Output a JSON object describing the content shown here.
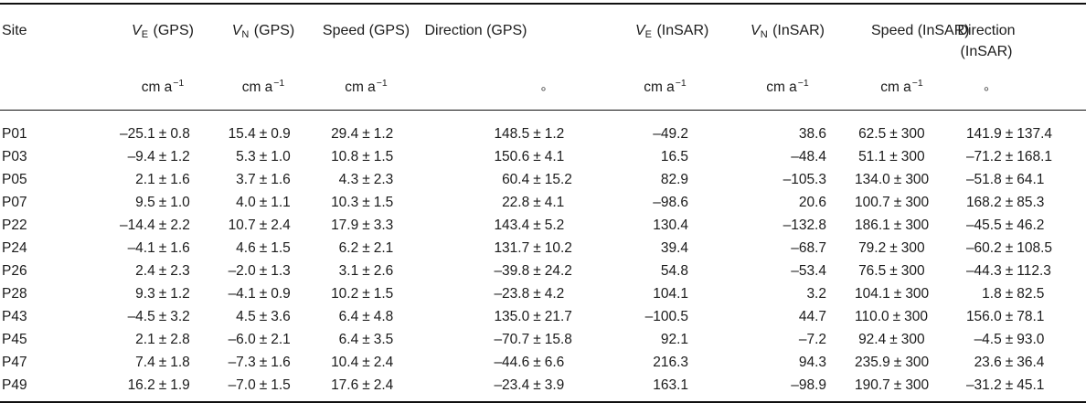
{
  "table": {
    "columns": [
      {
        "key": "site",
        "type": "text",
        "align": "left",
        "title": {
          "text": "Site"
        },
        "unit": null
      },
      {
        "key": "ve_gps",
        "type": "pm",
        "title": {
          "var": "V",
          "sub": "E",
          "rest": "(GPS)"
        },
        "unit": {
          "base": "cm a",
          "sup": "−1"
        }
      },
      {
        "key": "vn_gps",
        "type": "pm",
        "title": {
          "var": "V",
          "sub": "N",
          "rest": "(GPS)"
        },
        "unit": {
          "base": "cm a",
          "sup": "−1"
        }
      },
      {
        "key": "speed_gps",
        "type": "pm",
        "title": {
          "text": "Speed (GPS)"
        },
        "unit": {
          "base": "cm a",
          "sup": "−1"
        }
      },
      {
        "key": "dir_gps",
        "type": "pm",
        "title": {
          "text": "Direction (GPS)"
        },
        "unit": {
          "degree": "°"
        }
      },
      {
        "key": "ve_insar",
        "type": "num",
        "title": {
          "var": "V",
          "sub": "E",
          "rest": "(InSAR)"
        },
        "unit": {
          "base": "cm a",
          "sup": "−1"
        }
      },
      {
        "key": "vn_insar",
        "type": "num",
        "title": {
          "var": "V",
          "sub": "N",
          "rest": "(InSAR)"
        },
        "unit": {
          "base": "cm a",
          "sup": "−1"
        }
      },
      {
        "key": "speed_insar",
        "type": "pm",
        "title": {
          "text": "Speed (InSAR)"
        },
        "unit": {
          "base": "cm a",
          "sup": "−1"
        }
      },
      {
        "key": "dir_insar",
        "type": "pm",
        "title": {
          "text": "Direction",
          "text2": "(InSAR)"
        },
        "unit": {
          "degree": "°"
        }
      }
    ],
    "rows": [
      [
        "P01",
        "–25.1 ± 0.8",
        "15.4 ± 0.9",
        "29.4 ± 1.2",
        "148.5 ± 1.2",
        "–49.2",
        "38.6",
        "62.5 ± 300",
        "141.9 ± 137.4"
      ],
      [
        "P03",
        "–9.4 ± 1.2",
        "5.3 ± 1.0",
        "10.8 ± 1.5",
        "150.6 ± 4.1",
        "16.5",
        "–48.4",
        "51.1 ± 300",
        "–71.2 ± 168.1"
      ],
      [
        "P05",
        "2.1 ± 1.6",
        "3.7 ± 1.6",
        "4.3 ± 2.3",
        "60.4 ± 15.2",
        "82.9",
        "–105.3",
        "134.0 ± 300",
        "–51.8 ± 64.1"
      ],
      [
        "P07",
        "9.5 ± 1.0",
        "4.0 ± 1.1",
        "10.3 ± 1.5",
        "22.8 ± 4.1",
        "–98.6",
        "20.6",
        "100.7 ± 300",
        "168.2 ± 85.3"
      ],
      [
        "P22",
        "–14.4 ± 2.2",
        "10.7 ± 2.4",
        "17.9 ± 3.3",
        "143.4 ± 5.2",
        "130.4",
        "–132.8",
        "186.1 ± 300",
        "–45.5 ± 46.2"
      ],
      [
        "P24",
        "–4.1 ± 1.6",
        "4.6 ± 1.5",
        "6.2 ± 2.1",
        "131.7 ± 10.2",
        "39.4",
        "–68.7",
        "79.2 ± 300",
        "–60.2 ± 108.5"
      ],
      [
        "P26",
        "2.4 ± 2.3",
        "–2.0 ± 1.3",
        "3.1 ± 2.6",
        "–39.8 ± 24.2",
        "54.8",
        "–53.4",
        "76.5 ± 300",
        "–44.3 ± 112.3"
      ],
      [
        "P28",
        "9.3 ± 1.2",
        "–4.1 ± 0.9",
        "10.2 ± 1.5",
        "–23.8 ± 4.2",
        "104.1",
        "3.2",
        "104.1 ± 300",
        "1.8 ± 82.5"
      ],
      [
        "P43",
        "–4.5 ± 3.2",
        "4.5 ± 3.6",
        "6.4 ± 4.8",
        "135.0 ± 21.7",
        "–100.5",
        "44.7",
        "110.0 ± 300",
        "156.0 ± 78.1"
      ],
      [
        "P45",
        "2.1 ± 2.8",
        "–6.0 ± 2.1",
        "6.4 ± 3.5",
        "–70.7 ± 15.8",
        "92.1",
        "–7.2",
        "92.4 ± 300",
        "–4.5 ± 93.0"
      ],
      [
        "P47",
        "7.4 ± 1.8",
        "–7.3 ± 1.6",
        "10.4 ± 2.4",
        "–44.6 ± 6.6",
        "216.3",
        "94.3",
        "235.9 ± 300",
        "23.6 ± 36.4"
      ],
      [
        "P49",
        "16.2 ± 1.9",
        "–7.0 ± 1.5",
        "17.6 ± 2.4",
        "–23.4 ± 3.9",
        "163.1",
        "–98.9",
        "190.7 ± 300",
        "–31.2 ± 45.1"
      ]
    ]
  }
}
